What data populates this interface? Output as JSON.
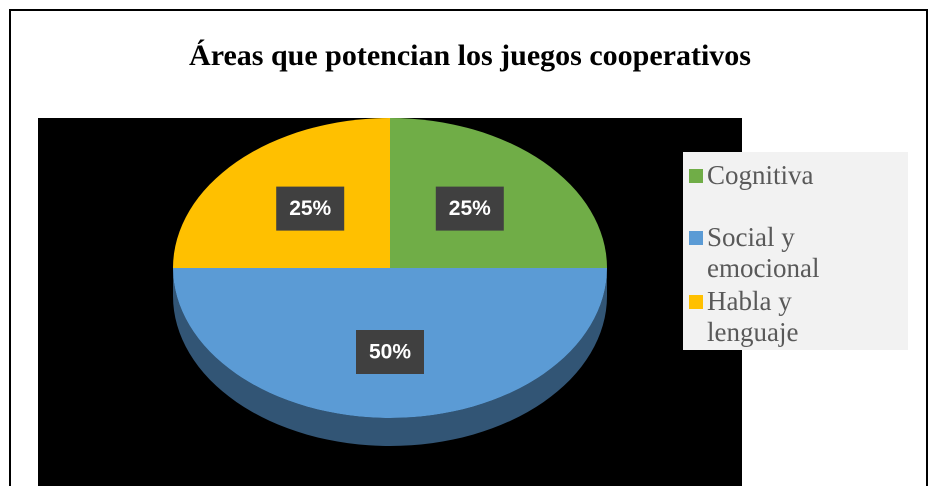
{
  "chart_data": {
    "type": "pie",
    "title": "Áreas que potencian los juegos cooperativos",
    "categories": [
      "Cognitiva",
      "Social y emocional",
      "Habla y lenguaje"
    ],
    "values": [
      25,
      50,
      25
    ],
    "value_labels": [
      "25%",
      "50%",
      "25%"
    ],
    "colors": [
      "#70ad47",
      "#5b9bd5",
      "#ffc000"
    ],
    "legend": "right"
  }
}
